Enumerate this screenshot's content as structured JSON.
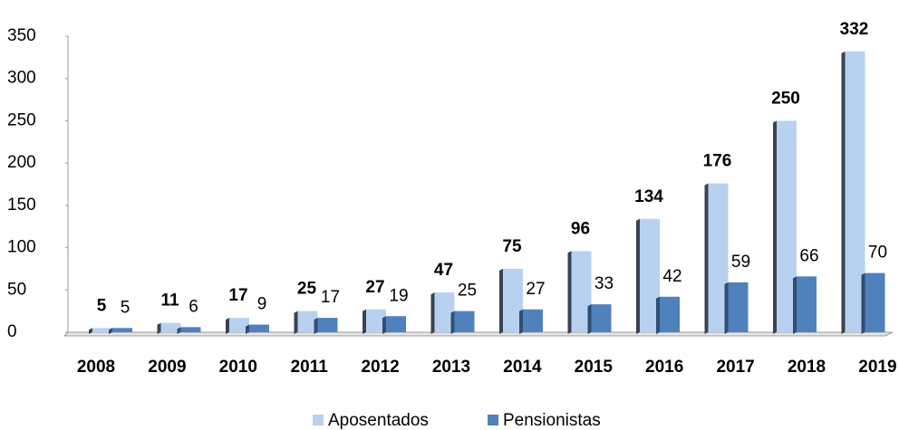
{
  "chart_data": {
    "type": "bar",
    "categories": [
      "2008",
      "2009",
      "2010",
      "2011",
      "2012",
      "2013",
      "2014",
      "2015",
      "2016",
      "2017",
      "2018",
      "2019"
    ],
    "series": [
      {
        "name": "Aposentados",
        "color": "#b9d1f0",
        "values": [
          5,
          11,
          17,
          25,
          27,
          47,
          75,
          96,
          134,
          176,
          250,
          332
        ]
      },
      {
        "name": "Pensionistas",
        "color": "#4f81bd",
        "values": [
          5,
          6,
          9,
          17,
          19,
          25,
          27,
          33,
          42,
          59,
          66,
          70
        ]
      }
    ],
    "ylim": [
      0,
      350
    ],
    "yticks": [
      0,
      50,
      100,
      150,
      200,
      250,
      300,
      350
    ],
    "legend": "bottom"
  }
}
